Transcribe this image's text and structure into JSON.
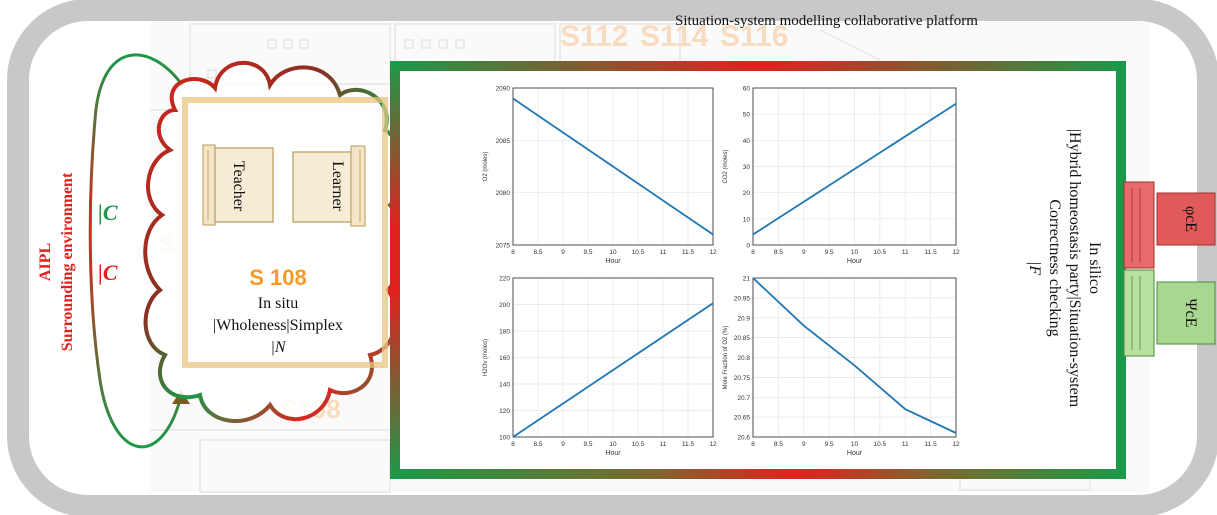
{
  "platform_title": "Situation-system modelling collaborative platform",
  "left": {
    "aipl": "AIPL",
    "environment": "Surrounding environment",
    "c_green": "|C",
    "c_red": "|C"
  },
  "cloud": {
    "teacher": "Teacher",
    "learner": "Learner",
    "room": "S 108",
    "line1": "In situ",
    "line2": "|Wholeness|Simplex",
    "line3": "|N"
  },
  "right": {
    "line1": "In silico",
    "line2": "|Hybrid homeostasis party|Situation-system",
    "line3": "Correctness checking",
    "line4": "|F"
  },
  "tabs": {
    "red": "φcE",
    "green": "ΨcE"
  },
  "background": {
    "labels": [
      "S112",
      "S114",
      "S116",
      "S",
      "S108"
    ]
  },
  "colors": {
    "red": "#e0221e",
    "green": "#1a9a48",
    "orange": "#f59a23",
    "tab_red": "#e05a5a",
    "tab_green": "#a8d890",
    "line": "#1f77b4",
    "frame": "#c8c8c8"
  },
  "chart_data": [
    {
      "type": "line",
      "xlabel": "Hour",
      "ylabel": "O2 (moles)",
      "xlim": [
        8,
        12
      ],
      "ylim": [
        2075,
        2090
      ],
      "xticks": [
        "8",
        "8.5",
        "9",
        "9.5",
        "10",
        "10.5",
        "11",
        "11.5",
        "12"
      ],
      "yticks": [
        "2075",
        "2080",
        "2085",
        "2090"
      ],
      "grid": true,
      "x": [
        8,
        12
      ],
      "y": [
        2089,
        2076
      ]
    },
    {
      "type": "line",
      "xlabel": "Hour",
      "ylabel": "CO2 (moles)",
      "xlim": [
        8,
        12
      ],
      "ylim": [
        0,
        60
      ],
      "xticks": [
        "8",
        "8.5",
        "9",
        "9.5",
        "10",
        "10.5",
        "11",
        "11.5",
        "12"
      ],
      "yticks": [
        "0",
        "10",
        "20",
        "30",
        "40",
        "50",
        "60"
      ],
      "grid": true,
      "x": [
        8,
        12
      ],
      "y": [
        4,
        54
      ]
    },
    {
      "type": "line",
      "xlabel": "Hour",
      "ylabel": "H2Ov (moles)",
      "xlim": [
        8,
        12
      ],
      "ylim": [
        100,
        220
      ],
      "xticks": [
        "8",
        "8.5",
        "9",
        "9.5",
        "10",
        "10.5",
        "11",
        "11.5",
        "12"
      ],
      "yticks": [
        "100",
        "120",
        "140",
        "160",
        "180",
        "200",
        "220"
      ],
      "grid": true,
      "x": [
        8,
        12
      ],
      "y": [
        100,
        201
      ]
    },
    {
      "type": "line",
      "xlabel": "Hour",
      "ylabel": "Mole Fraction of O2 (%)",
      "xlim": [
        8,
        12
      ],
      "ylim": [
        20.6,
        21
      ],
      "xticks": [
        "8",
        "8.5",
        "9",
        "9.5",
        "10",
        "10.5",
        "11",
        "11.5",
        "12"
      ],
      "yticks": [
        "20.6",
        "20.65",
        "20.7",
        "20.75",
        "20.8",
        "20.85",
        "20.9",
        "20.95",
        "21"
      ],
      "grid": true,
      "x": [
        8,
        9,
        10,
        11,
        12
      ],
      "y": [
        21,
        20.88,
        20.78,
        20.67,
        20.61
      ]
    }
  ]
}
